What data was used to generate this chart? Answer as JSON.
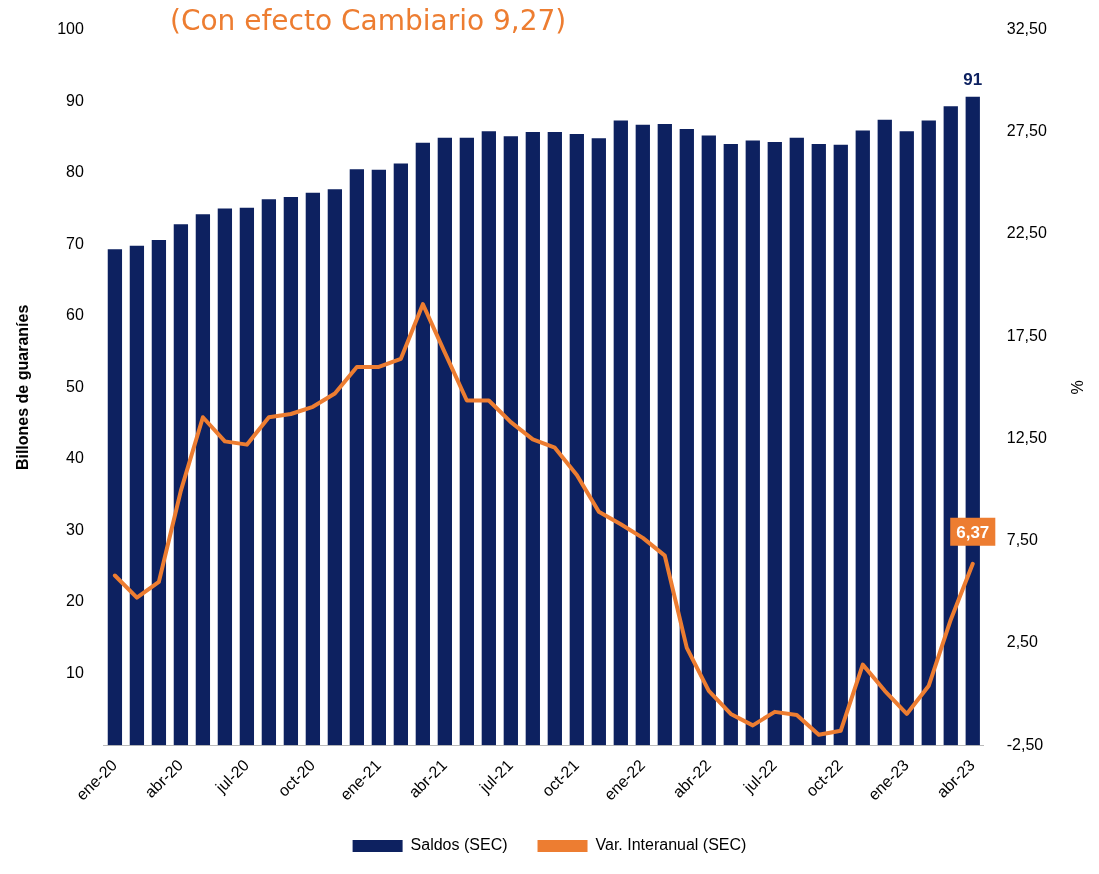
{
  "chart_data": {
    "type": "bar",
    "title": "(Con efecto Cambiario  9,27)",
    "ylabel": "Billones de guaraníes",
    "y2label": "%",
    "categories": [
      "ene-20",
      null,
      null,
      "abr-20",
      null,
      null,
      "jul-20",
      null,
      null,
      "oct-20",
      null,
      null,
      "ene-21",
      null,
      null,
      "abr-21",
      null,
      null,
      "jul-21",
      null,
      null,
      "oct-21",
      null,
      null,
      "ene-22",
      null,
      null,
      "abr-22",
      null,
      null,
      "jul-22",
      null,
      null,
      "oct-22",
      null,
      null,
      "ene-23",
      null,
      null,
      "abr-23"
    ],
    "series": [
      {
        "name": "Saldos (SEC)",
        "color": "#0d2160",
        "values": [
          69.3,
          69.8,
          70.6,
          72.8,
          74.2,
          75.0,
          75.1,
          76.3,
          76.6,
          77.2,
          77.7,
          80.5,
          80.4,
          81.3,
          84.2,
          84.9,
          84.9,
          85.8,
          85.1,
          85.7,
          85.7,
          85.4,
          84.8,
          87.3,
          86.7,
          86.8,
          86.1,
          85.2,
          84.0,
          84.5,
          84.3,
          84.9,
          84.0,
          83.9,
          85.9,
          87.4,
          85.8,
          87.3,
          89.3,
          90.6
        ],
        "value_labels": [
          null,
          null,
          null,
          null,
          null,
          null,
          null,
          null,
          null,
          null,
          null,
          null,
          null,
          null,
          null,
          null,
          null,
          null,
          null,
          null,
          null,
          null,
          null,
          null,
          null,
          null,
          null,
          null,
          null,
          null,
          null,
          null,
          null,
          null,
          null,
          null,
          null,
          null,
          null,
          "91"
        ]
      },
      {
        "name": "Var. Interanual (SEC)",
        "type": "line",
        "axis": "y2",
        "color": "#ed7d31",
        "values": [
          5.8,
          4.72,
          5.49,
          9.95,
          13.54,
          12.36,
          12.2,
          13.54,
          13.7,
          14.05,
          14.7,
          16.0,
          16.0,
          16.4,
          19.07,
          16.7,
          14.36,
          14.36,
          13.3,
          12.46,
          12.05,
          10.72,
          8.92,
          8.31,
          7.64,
          6.77,
          2.26,
          0.16,
          -0.97,
          -1.53,
          -0.87,
          -1.02,
          -1.99,
          -1.79,
          1.44,
          0.16,
          -0.97,
          0.41,
          3.64,
          6.37
        ],
        "value_labels": [
          null,
          null,
          null,
          null,
          null,
          null,
          null,
          null,
          null,
          null,
          null,
          null,
          null,
          null,
          null,
          null,
          null,
          null,
          null,
          null,
          null,
          null,
          null,
          null,
          null,
          null,
          null,
          null,
          null,
          null,
          null,
          null,
          null,
          null,
          null,
          null,
          null,
          null,
          null,
          "6,37"
        ]
      }
    ],
    "ylim": [
      0,
      100
    ],
    "yticks": [
      10,
      20,
      30,
      40,
      50,
      60,
      70,
      80,
      90,
      100
    ],
    "y2lim": [
      -2.5,
      32.5
    ],
    "y2ticks": [
      {
        "value": -2.5,
        "label": "-2,50"
      },
      {
        "value": 2.5,
        "label": "2,50"
      },
      {
        "value": 7.5,
        "label": "7,50"
      },
      {
        "value": 12.5,
        "label": "12,50"
      },
      {
        "value": 17.5,
        "label": "17,50"
      },
      {
        "value": 22.5,
        "label": "22,50"
      },
      {
        "value": 27.5,
        "label": "27,50"
      },
      {
        "value": 32.5,
        "label": "32,50"
      }
    ],
    "grid": false,
    "legend": "bottom",
    "marker": "none",
    "line_style": "solid"
  }
}
